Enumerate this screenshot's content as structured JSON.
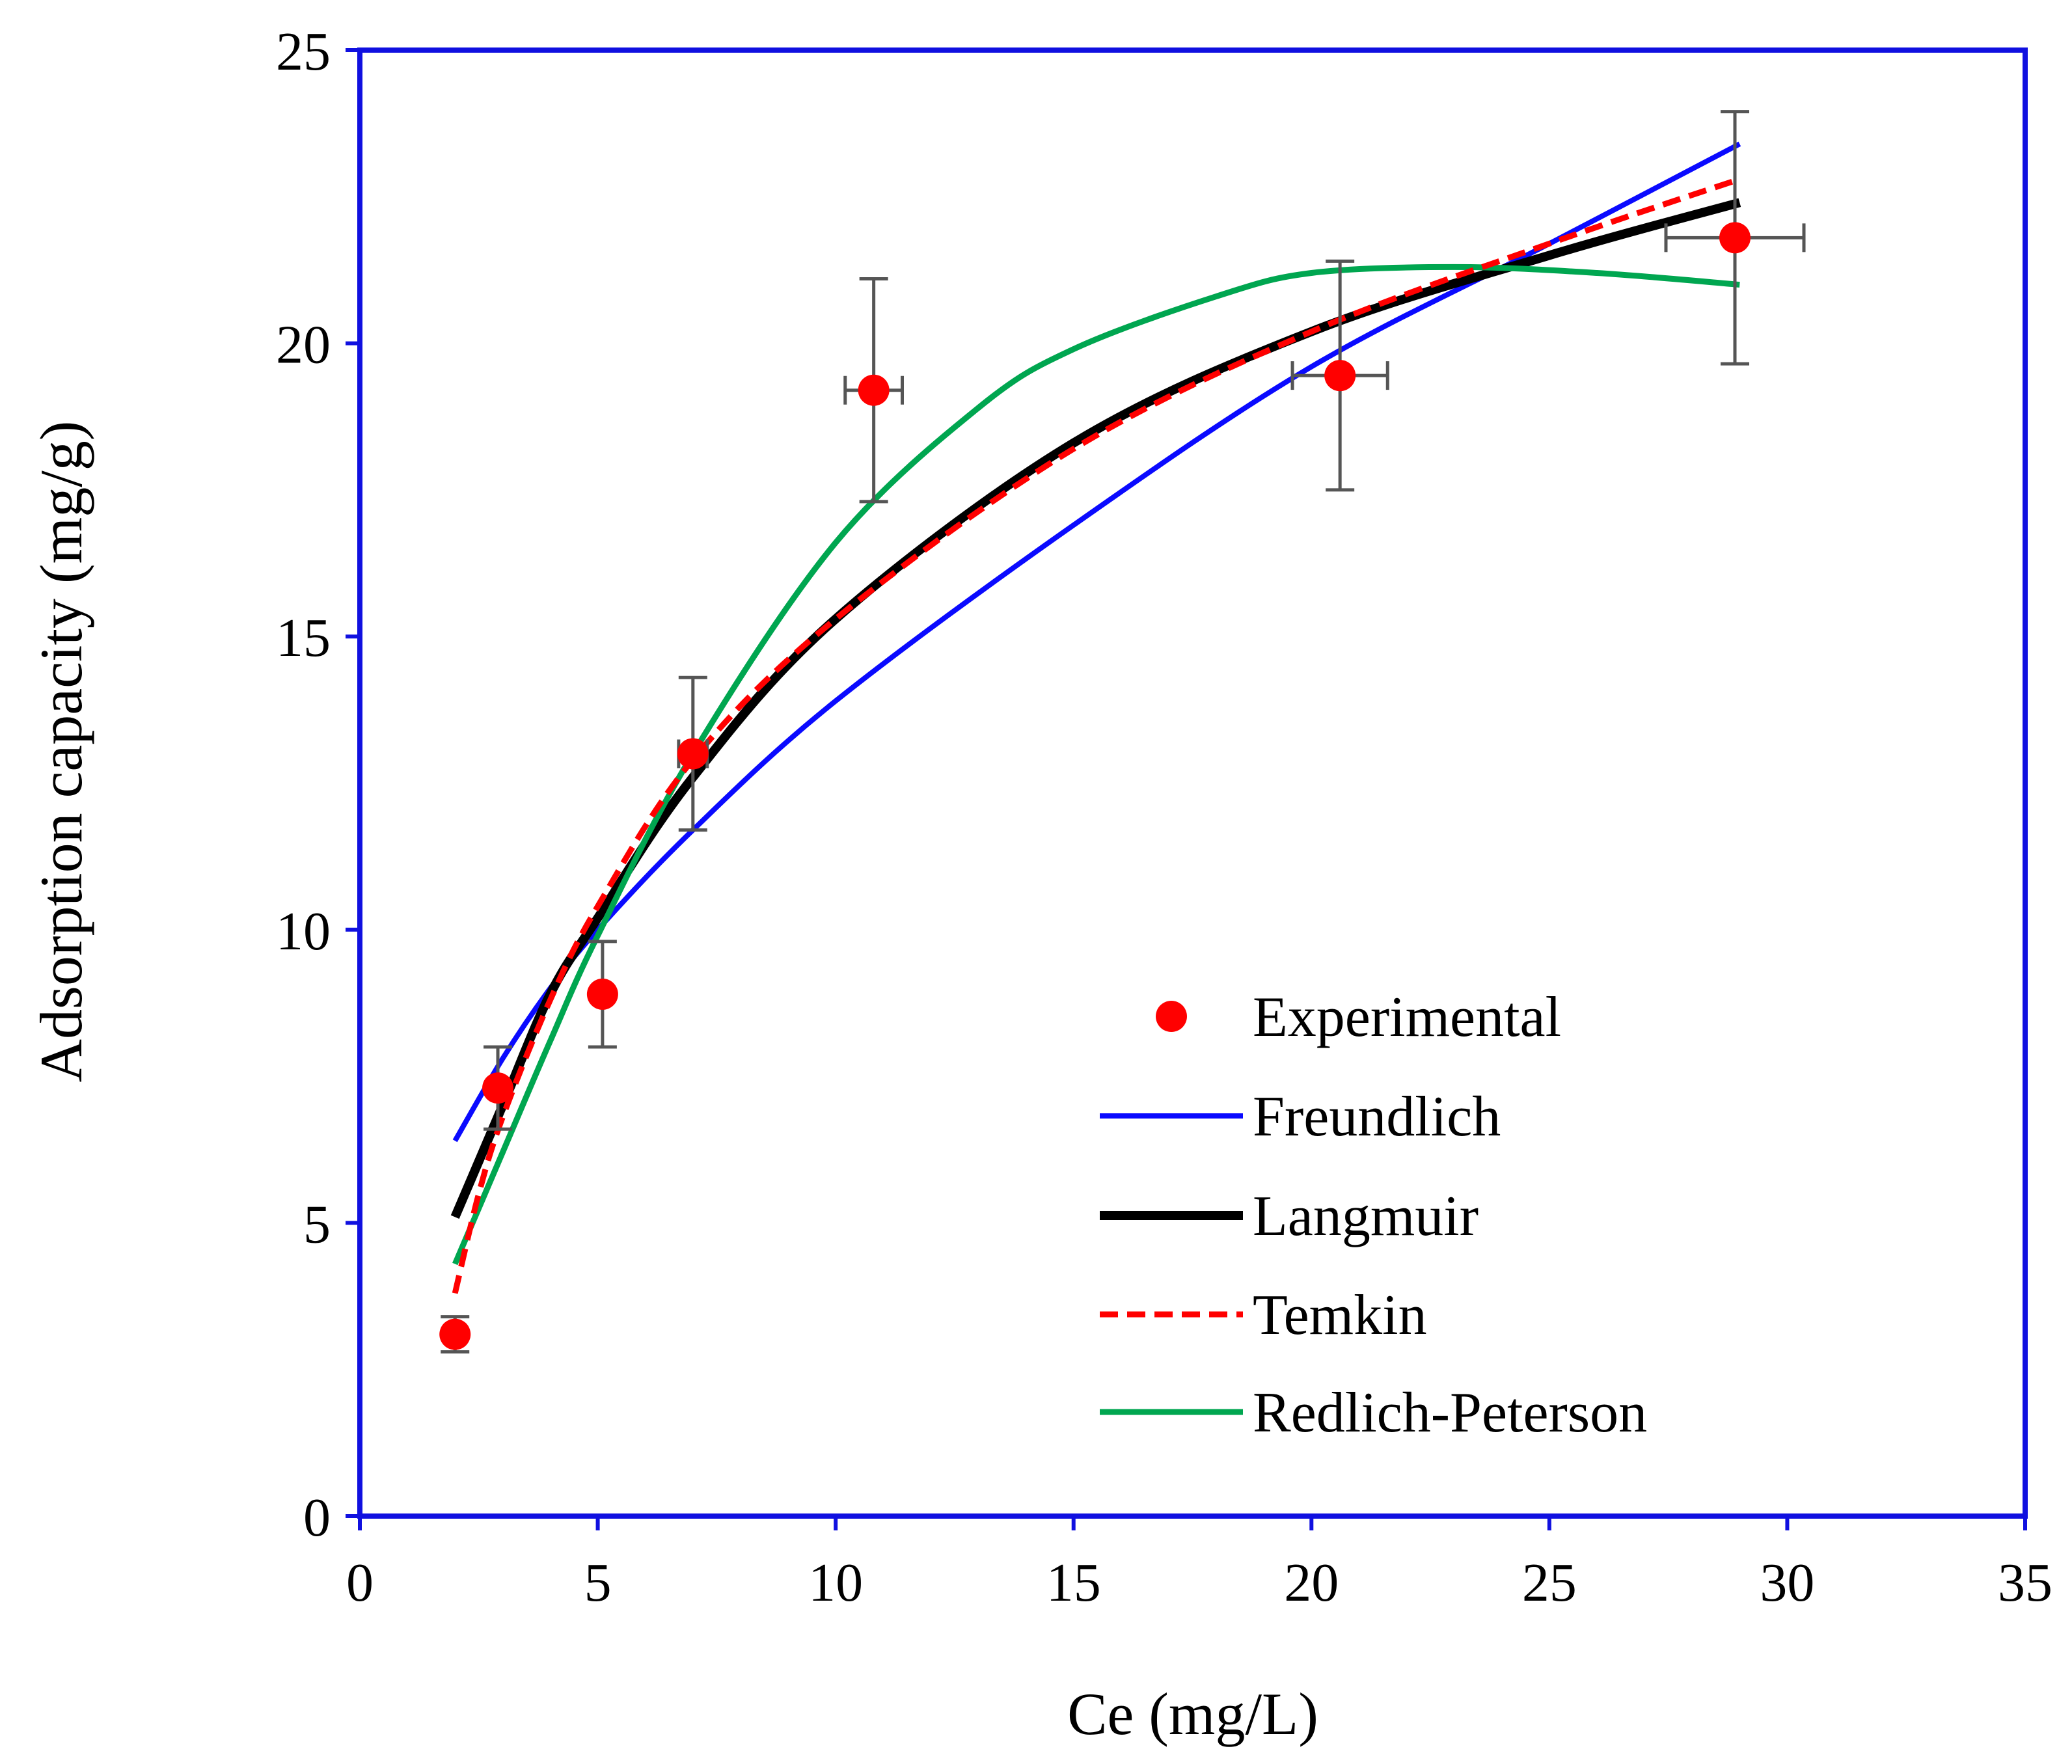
{
  "chart_data": {
    "type": "scatter",
    "title": "",
    "xlabel": "Ce (mg/L)",
    "ylabel": "Adsorption capacity (mg/g)",
    "xlim": [
      0,
      35
    ],
    "ylim": [
      0,
      25
    ],
    "xticks": [
      0,
      5,
      10,
      15,
      20,
      25,
      30,
      35
    ],
    "yticks": [
      0,
      5,
      10,
      15,
      20,
      25
    ],
    "grid": false,
    "legend_position": "lower-right",
    "colors": {
      "axes": "#1010e0",
      "experimental": "#ff0000",
      "freundlich": "#0a0aff",
      "langmuir": "#000000",
      "temkin": "#ff0000",
      "redlich_peterson": "#00a650",
      "error_bar": "#555555"
    },
    "experimental": {
      "name": "Experimental",
      "points": [
        {
          "x": 2.0,
          "y": 3.1,
          "xerr": 0.0,
          "yerr": 0.3
        },
        {
          "x": 2.9,
          "y": 7.3,
          "xerr": 0.0,
          "yerr": 0.7
        },
        {
          "x": 5.1,
          "y": 8.9,
          "xerr": 0.0,
          "yerr": 0.9
        },
        {
          "x": 7.0,
          "y": 13.0,
          "xerr": 0.3,
          "yerr": 1.3
        },
        {
          "x": 10.8,
          "y": 19.2,
          "xerr": 0.6,
          "yerr": 1.9
        },
        {
          "x": 20.6,
          "y": 19.45,
          "xerr": 1.0,
          "yerr": 1.95
        },
        {
          "x": 28.9,
          "y": 21.8,
          "xerr": 1.45,
          "yerr": 2.15
        }
      ]
    },
    "series": [
      {
        "name": "Freundlich",
        "key": "freundlich",
        "style": "solid",
        "x": [
          2,
          3,
          4,
          5,
          7,
          10,
          15,
          20,
          25,
          29
        ],
        "y": [
          6.4,
          7.8,
          9.0,
          10.0,
          11.7,
          13.9,
          16.9,
          19.6,
          21.7,
          23.4
        ]
      },
      {
        "name": "Langmuir",
        "key": "langmuir",
        "style": "thick",
        "x": [
          2,
          3,
          4,
          5,
          7,
          10,
          15,
          20,
          25,
          29
        ],
        "y": [
          5.1,
          7.0,
          8.9,
          10.2,
          12.6,
          15.3,
          18.3,
          20.2,
          21.5,
          22.4
        ]
      },
      {
        "name": "Temkin",
        "key": "temkin",
        "style": "dashed",
        "x": [
          2,
          2.5,
          3,
          4,
          5,
          7,
          10,
          15,
          20,
          25,
          29
        ],
        "y": [
          3.8,
          5.5,
          6.8,
          8.8,
          10.4,
          12.9,
          15.3,
          18.2,
          20.2,
          21.7,
          22.8
        ]
      },
      {
        "name": "Redlich-Peterson",
        "key": "redlich_peterson",
        "style": "solid",
        "x": [
          2,
          3,
          4,
          5,
          7,
          10,
          13,
          15,
          18,
          20,
          23,
          26,
          29
        ],
        "y": [
          4.3,
          6.2,
          8.1,
          9.9,
          13.0,
          16.6,
          18.9,
          19.9,
          20.8,
          21.2,
          21.3,
          21.2,
          21.0
        ]
      }
    ],
    "legend": [
      "Experimental",
      "Freundlich",
      "Langmuir",
      "Temkin",
      "Redlich-Peterson"
    ]
  }
}
